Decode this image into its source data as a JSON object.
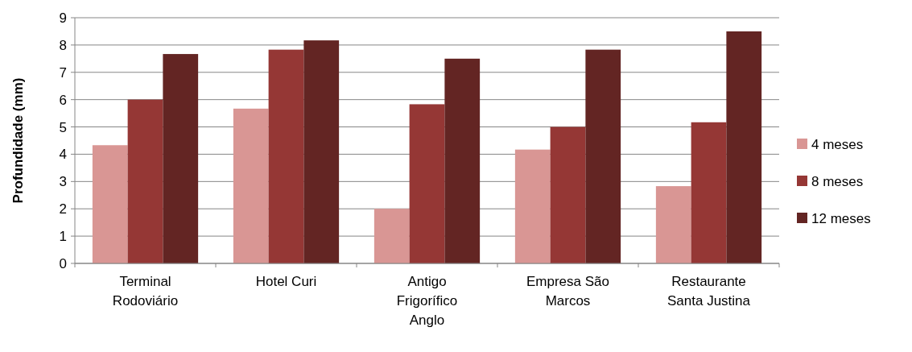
{
  "chart_data": {
    "type": "bar",
    "ylabel": "Profundidade (mm)",
    "categories": [
      "Terminal Rodoviário",
      "Hotel Curi",
      "Antigo Frigorífico Anglo",
      "Empresa São Marcos",
      "Restaurante Santa Justina"
    ],
    "series": [
      {
        "name": "4 meses",
        "color": "#d99694",
        "values": [
          4.33,
          5.67,
          2.0,
          4.17,
          2.83
        ]
      },
      {
        "name": "8 meses",
        "color": "#953735",
        "values": [
          6.0,
          7.83,
          5.83,
          5.0,
          5.17
        ]
      },
      {
        "name": "12 meses",
        "color": "#632523",
        "values": [
          7.67,
          8.17,
          7.5,
          7.83,
          8.5
        ]
      }
    ],
    "ylim": [
      0,
      9
    ],
    "yticks": [
      0,
      1,
      2,
      3,
      4,
      5,
      6,
      7,
      8,
      9
    ],
    "grid": "y",
    "legend": "right"
  }
}
